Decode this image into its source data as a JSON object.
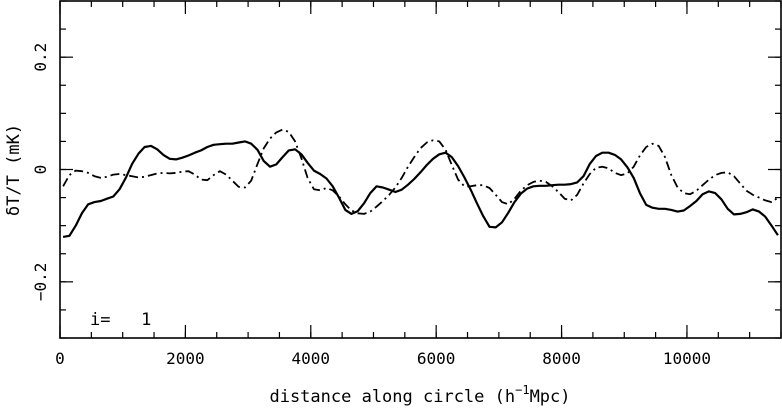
{
  "chart_data": {
    "type": "line",
    "title": "",
    "xlabel_main": "distance along circle (h",
    "xlabel_sup": "−1",
    "xlabel_rest": "Mpc)",
    "ylabel": "δT/T (mK)",
    "annotation": "i=   1",
    "xlim": [
      0,
      11500
    ],
    "ylim": [
      -0.3,
      0.3
    ],
    "x_ticks": [
      0,
      2000,
      4000,
      6000,
      8000,
      10000
    ],
    "x_tick_labels": [
      "0",
      "2000",
      "4000",
      "6000",
      "8000",
      "10000"
    ],
    "x_minor_step": 500,
    "y_ticks": [
      -0.2,
      0,
      0.2
    ],
    "y_tick_labels": [
      "−0.2",
      "0",
      "0.2"
    ],
    "y_minor_step": 0.05,
    "grid": false,
    "legend": "none",
    "series": [
      {
        "style": "solid",
        "x": [
          50,
          150,
          250,
          350,
          450,
          550,
          650,
          750,
          850,
          950,
          1050,
          1150,
          1250,
          1350,
          1450,
          1550,
          1650,
          1750,
          1850,
          1950,
          2050,
          2150,
          2250,
          2350,
          2450,
          2550,
          2650,
          2750,
          2850,
          2950,
          3050,
          3150,
          3250,
          3350,
          3450,
          3550,
          3650,
          3750,
          3850,
          3950,
          4050,
          4150,
          4250,
          4350,
          4450,
          4550,
          4650,
          4750,
          4850,
          4950,
          5050,
          5150,
          5250,
          5350,
          5450,
          5550,
          5650,
          5750,
          5850,
          5950,
          6050,
          6150,
          6250,
          6350,
          6450,
          6550,
          6650,
          6750,
          6850,
          6950,
          7050,
          7150,
          7250,
          7350,
          7450,
          7550,
          7650,
          7750,
          7850,
          7950,
          8050,
          8150,
          8250,
          8350,
          8450,
          8550,
          8650,
          8750,
          8850,
          8950,
          9050,
          9150,
          9250,
          9350,
          9450,
          9550,
          9650,
          9750,
          9850,
          9950,
          10050,
          10150,
          10250,
          10350,
          10450,
          10550,
          10650,
          10750,
          10850,
          10950,
          11050,
          11150,
          11250,
          11350,
          11450
        ],
        "y": [
          -0.12,
          -0.118,
          -0.1,
          -0.078,
          -0.062,
          -0.058,
          -0.056,
          -0.052,
          -0.048,
          -0.035,
          -0.015,
          0.01,
          0.028,
          0.04,
          0.042,
          0.036,
          0.026,
          0.019,
          0.018,
          0.021,
          0.025,
          0.03,
          0.034,
          0.04,
          0.044,
          0.045,
          0.046,
          0.046,
          0.048,
          0.05,
          0.046,
          0.035,
          0.015,
          0.005,
          0.009,
          0.022,
          0.034,
          0.036,
          0.027,
          0.012,
          -0.002,
          -0.008,
          -0.016,
          -0.03,
          -0.05,
          -0.072,
          -0.079,
          -0.074,
          -0.06,
          -0.042,
          -0.03,
          -0.032,
          -0.036,
          -0.04,
          -0.036,
          -0.027,
          -0.017,
          -0.005,
          0.008,
          0.019,
          0.027,
          0.03,
          0.022,
          0.006,
          -0.014,
          -0.036,
          -0.06,
          -0.083,
          -0.102,
          -0.103,
          -0.094,
          -0.077,
          -0.058,
          -0.043,
          -0.034,
          -0.03,
          -0.029,
          -0.029,
          -0.028,
          -0.027,
          -0.027,
          -0.026,
          -0.023,
          -0.012,
          0.01,
          0.024,
          0.03,
          0.03,
          0.026,
          0.018,
          0.004,
          -0.015,
          -0.042,
          -0.063,
          -0.068,
          -0.07,
          -0.07,
          -0.072,
          -0.075,
          -0.073,
          -0.065,
          -0.056,
          -0.044,
          -0.039,
          -0.042,
          -0.053,
          -0.07,
          -0.08,
          -0.079,
          -0.076,
          -0.071,
          -0.075,
          -0.084,
          -0.1,
          -0.117
        ]
      },
      {
        "style": "dashdot",
        "x": [
          50,
          150,
          250,
          350,
          450,
          550,
          650,
          750,
          850,
          950,
          1050,
          1150,
          1250,
          1350,
          1450,
          1550,
          1650,
          1750,
          1850,
          1950,
          2050,
          2150,
          2250,
          2350,
          2450,
          2550,
          2650,
          2750,
          2850,
          2950,
          3050,
          3150,
          3250,
          3350,
          3450,
          3550,
          3650,
          3750,
          3850,
          3950,
          4050,
          4150,
          4250,
          4350,
          4450,
          4550,
          4650,
          4750,
          4850,
          4950,
          5050,
          5150,
          5250,
          5350,
          5450,
          5550,
          5650,
          5750,
          5850,
          5950,
          6050,
          6150,
          6250,
          6350,
          6450,
          6550,
          6650,
          6750,
          6850,
          6950,
          7050,
          7150,
          7250,
          7350,
          7450,
          7550,
          7650,
          7750,
          7850,
          7950,
          8050,
          8150,
          8250,
          8350,
          8450,
          8550,
          8650,
          8750,
          8850,
          8950,
          9050,
          9150,
          9250,
          9350,
          9450,
          9550,
          9650,
          9750,
          9850,
          9950,
          10050,
          10150,
          10250,
          10350,
          10450,
          10550,
          10650,
          10750,
          10850,
          10950,
          11050,
          11150,
          11250,
          11350,
          11450
        ],
        "y": [
          -0.03,
          -0.01,
          -0.002,
          -0.003,
          -0.006,
          -0.012,
          -0.015,
          -0.013,
          -0.009,
          -0.008,
          -0.01,
          -0.012,
          -0.014,
          -0.013,
          -0.01,
          -0.007,
          -0.006,
          -0.007,
          -0.006,
          -0.004,
          -0.003,
          -0.009,
          -0.018,
          -0.019,
          -0.01,
          -0.003,
          -0.009,
          -0.02,
          -0.031,
          -0.032,
          -0.02,
          0.01,
          0.038,
          0.055,
          0.066,
          0.071,
          0.067,
          0.05,
          0.02,
          -0.015,
          -0.035,
          -0.037,
          -0.033,
          -0.037,
          -0.048,
          -0.062,
          -0.073,
          -0.078,
          -0.079,
          -0.075,
          -0.066,
          -0.056,
          -0.045,
          -0.032,
          -0.015,
          0.005,
          0.022,
          0.038,
          0.048,
          0.052,
          0.05,
          0.035,
          0.008,
          -0.018,
          -0.03,
          -0.03,
          -0.028,
          -0.028,
          -0.033,
          -0.045,
          -0.058,
          -0.062,
          -0.052,
          -0.038,
          -0.028,
          -0.022,
          -0.02,
          -0.022,
          -0.03,
          -0.04,
          -0.052,
          -0.055,
          -0.045,
          -0.025,
          -0.008,
          0.003,
          0.005,
          0.002,
          -0.006,
          -0.01,
          -0.007,
          0.005,
          0.025,
          0.04,
          0.046,
          0.042,
          0.022,
          -0.01,
          -0.032,
          -0.042,
          -0.044,
          -0.038,
          -0.028,
          -0.018,
          -0.01,
          -0.006,
          -0.005,
          -0.012,
          -0.025,
          -0.038,
          -0.045,
          -0.05,
          -0.055,
          -0.058,
          -0.05
        ]
      }
    ]
  }
}
